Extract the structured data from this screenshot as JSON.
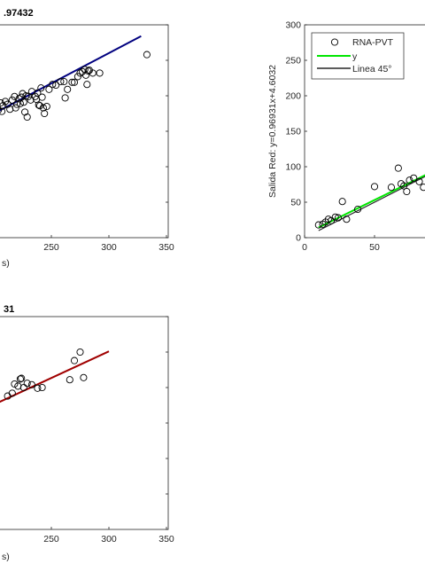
{
  "chart_data": [
    {
      "type": "scatter",
      "title": ".97432",
      "xlabel": "s)",
      "ylabel": "",
      "xlim": [
        200,
        350
      ],
      "xticks": [
        250,
        300,
        350
      ],
      "ylim": [
        0,
        300
      ],
      "grid": false,
      "line_color": "#00007f",
      "fit": {
        "x": [
          200,
          328
        ],
        "y": [
          175,
          284
        ]
      },
      "points": [
        [
          202,
          176
        ],
        [
          203,
          183
        ],
        [
          204,
          180
        ],
        [
          206,
          190
        ],
        [
          207,
          178
        ],
        [
          208,
          186
        ],
        [
          210,
          192
        ],
        [
          212,
          188
        ],
        [
          214,
          181
        ],
        [
          216,
          194
        ],
        [
          218,
          199
        ],
        [
          219,
          183
        ],
        [
          220,
          188
        ],
        [
          222,
          196
        ],
        [
          223,
          189
        ],
        [
          224,
          198
        ],
        [
          225,
          203
        ],
        [
          226,
          191
        ],
        [
          227,
          177
        ],
        [
          228,
          200
        ],
        [
          229,
          170
        ],
        [
          230,
          199
        ],
        [
          232,
          194
        ],
        [
          233,
          206
        ],
        [
          236,
          199
        ],
        [
          237,
          195
        ],
        [
          238,
          204
        ],
        [
          239,
          187
        ],
        [
          240,
          186
        ],
        [
          241,
          211
        ],
        [
          242,
          198
        ],
        [
          243,
          183
        ],
        [
          244,
          175
        ],
        [
          246,
          185
        ],
        [
          248,
          209
        ],
        [
          251,
          216
        ],
        [
          254,
          215
        ],
        [
          258,
          220
        ],
        [
          261,
          220
        ],
        [
          262,
          197
        ],
        [
          264,
          209
        ],
        [
          268,
          219
        ],
        [
          270,
          219
        ],
        [
          273,
          227
        ],
        [
          275,
          232
        ],
        [
          277,
          234
        ],
        [
          279,
          237
        ],
        [
          280,
          229
        ],
        [
          281,
          216
        ],
        [
          282,
          235
        ],
        [
          283,
          236
        ],
        [
          286,
          232
        ],
        [
          292,
          232
        ],
        [
          333,
          258
        ]
      ]
    },
    {
      "type": "scatter",
      "title": "",
      "xlabel": "",
      "ylabel": "Salida Red: y=0.96931x+4.6032",
      "xlim": [
        0,
        90
      ],
      "xticks": [
        0,
        50
      ],
      "ylim": [
        0,
        300
      ],
      "yticks": [
        0,
        50,
        100,
        150,
        200,
        250,
        300
      ],
      "grid": false,
      "legend": {
        "position": "top-left",
        "entries": [
          "RNA-PVT",
          "y",
          "Linea 45°"
        ]
      },
      "series": [
        {
          "name": "RNA-PVT",
          "kind": "marker",
          "points": [
            [
              10,
              18
            ],
            [
              13,
              19
            ],
            [
              15,
              22
            ],
            [
              17,
              26
            ],
            [
              19,
              24
            ],
            [
              22,
              29
            ],
            [
              24,
              28
            ],
            [
              27,
              51
            ],
            [
              30,
              26
            ],
            [
              38,
              40
            ],
            [
              50,
              72
            ],
            [
              62,
              71
            ],
            [
              67,
              98
            ],
            [
              69,
              76
            ],
            [
              71,
              73
            ],
            [
              73,
              65
            ],
            [
              75,
              81
            ],
            [
              78,
              84
            ],
            [
              82,
              79
            ],
            [
              85,
              71
            ]
          ]
        },
        {
          "name": "y",
          "kind": "line",
          "color": "#00e600",
          "x": [
            10,
            90
          ],
          "y": [
            14.3,
            91.8
          ]
        },
        {
          "name": "Linea 45°",
          "kind": "line",
          "color": "#262626",
          "x": [
            10,
            90
          ],
          "y": [
            10,
            90
          ]
        }
      ]
    },
    {
      "type": "scatter",
      "title": "31",
      "xlabel": "s)",
      "ylabel": "",
      "xlim": [
        200,
        350
      ],
      "xticks": [
        250,
        300,
        350
      ],
      "ylim": [
        0,
        300
      ],
      "grid": false,
      "line_color": "#a00000",
      "fit": {
        "x": [
          200,
          300
        ],
        "y": [
          176,
          251
        ]
      },
      "points": [
        [
          212,
          188
        ],
        [
          216,
          192
        ],
        [
          218,
          205
        ],
        [
          221,
          202
        ],
        [
          223,
          212
        ],
        [
          224,
          213
        ],
        [
          226,
          200
        ],
        [
          229,
          206
        ],
        [
          233,
          204
        ],
        [
          238,
          199
        ],
        [
          242,
          200
        ],
        [
          266,
          211
        ],
        [
          270,
          238
        ],
        [
          275,
          250
        ],
        [
          278,
          214
        ]
      ]
    }
  ]
}
